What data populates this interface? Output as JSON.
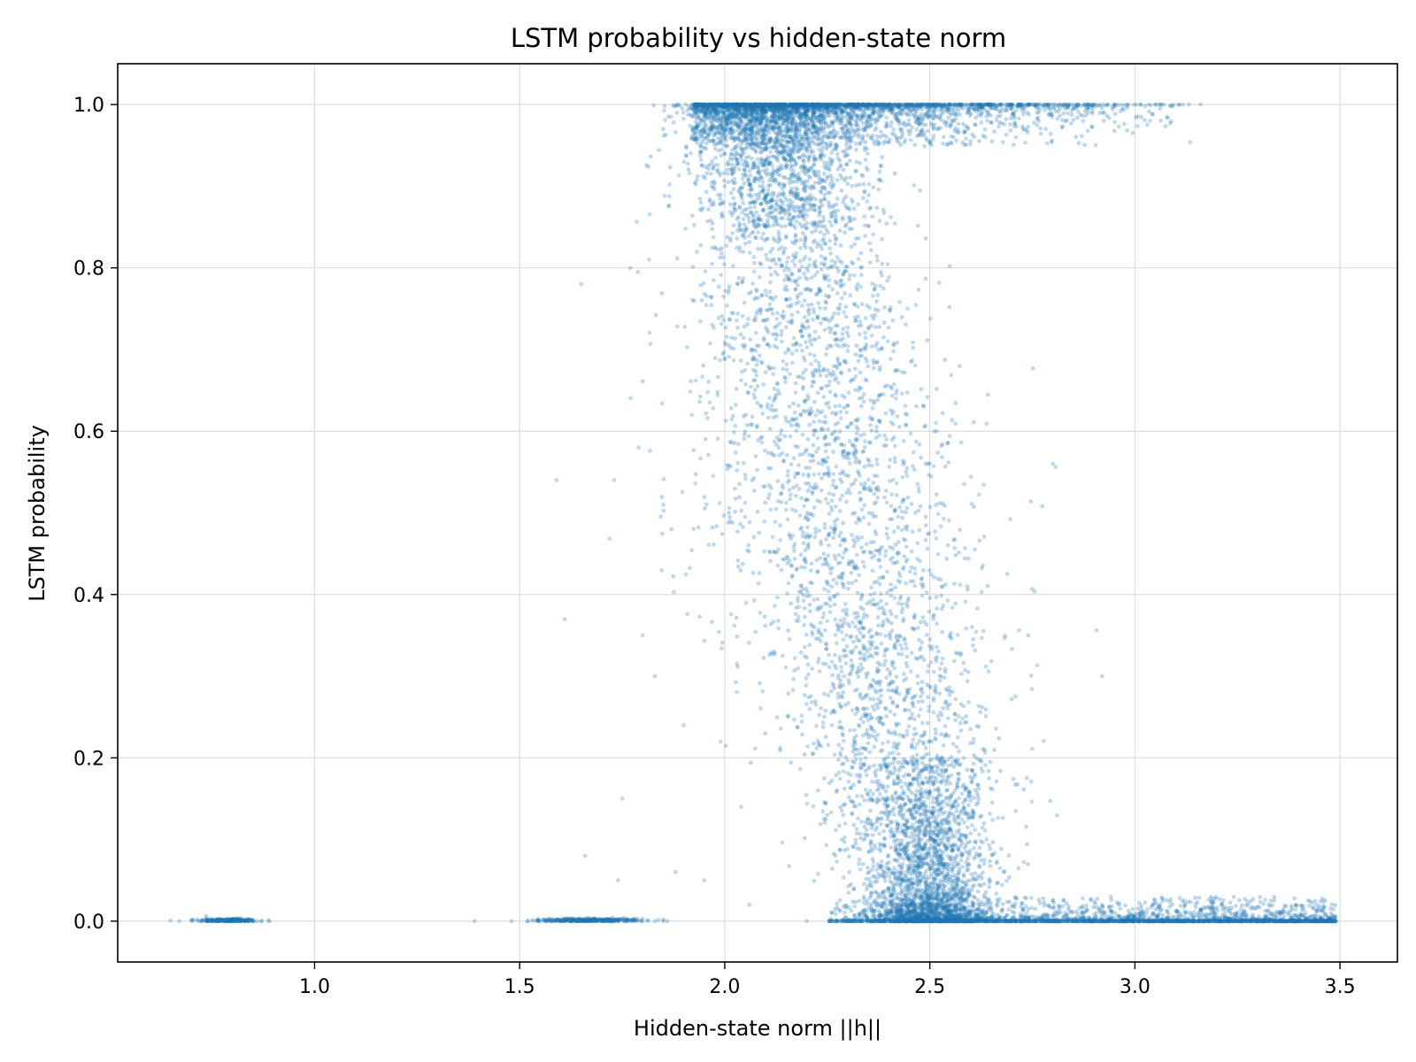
{
  "chart_data": {
    "type": "scatter",
    "title": "LSTM probability vs hidden-state norm",
    "xlabel": "Hidden-state norm ||h||",
    "ylabel": "LSTM probability",
    "xlim": [
      0.52,
      3.64
    ],
    "ylim": [
      -0.05,
      1.05
    ],
    "xticks": [
      1.0,
      1.5,
      2.0,
      2.5,
      3.0,
      3.5
    ],
    "xtick_labels": [
      "1.0",
      "1.5",
      "2.0",
      "2.5",
      "3.0",
      "3.5"
    ],
    "yticks": [
      0.0,
      0.2,
      0.4,
      0.6,
      0.8,
      1.0
    ],
    "ytick_labels": [
      "0.0",
      "0.2",
      "0.4",
      "0.6",
      "0.8",
      "1.0"
    ],
    "grid": true,
    "legend": "none",
    "marker_color": "#1f77b4",
    "marker_alpha": 0.28,
    "point_count_estimate": 20000,
    "series": [
      {
        "name": "cluster-low-norm-zero",
        "description_range": {
          "x": [
            0.67,
            0.89
          ],
          "y": [
            0.0,
            0.0
          ]
        },
        "x": [
          0.67,
          0.7,
          0.72,
          0.74,
          0.75,
          0.76,
          0.77,
          0.78,
          0.79,
          0.8,
          0.81,
          0.82,
          0.83,
          0.84,
          0.85,
          0.86,
          0.87,
          0.89
        ],
        "y": [
          0.0,
          0.0,
          0.0,
          0.0,
          0.0,
          0.0,
          0.0,
          0.0,
          0.0,
          0.0,
          0.0,
          0.0,
          0.0,
          0.0,
          0.0,
          0.0,
          0.0,
          0.0
        ]
      },
      {
        "name": "cluster-mid-norm-zero",
        "x": [
          1.39,
          1.48,
          1.52,
          1.55,
          1.58,
          1.6,
          1.62,
          1.64,
          1.66,
          1.68,
          1.7,
          1.72,
          1.74,
          1.76,
          1.78,
          1.8,
          1.83,
          1.86
        ],
        "y": [
          0.0,
          0.0,
          0.0,
          0.0,
          0.0,
          0.0,
          0.0,
          0.0,
          0.0,
          0.0,
          0.0,
          0.0,
          0.0,
          0.0,
          0.0,
          0.0,
          0.0,
          0.0
        ]
      },
      {
        "name": "sparse-transition-outliers",
        "x": [
          1.59,
          1.61,
          1.65,
          1.66,
          1.74,
          1.75,
          1.77,
          1.79,
          1.8,
          1.83,
          1.85,
          1.87,
          1.88,
          1.9,
          1.92,
          1.95,
          1.99,
          2.01,
          2.04,
          2.06
        ],
        "y": [
          0.54,
          0.37,
          0.78,
          0.08,
          0.05,
          0.15,
          0.8,
          0.58,
          0.35,
          0.3,
          0.51,
          0.48,
          0.06,
          0.24,
          0.62,
          0.05,
          0.22,
          0.5,
          0.14,
          0.02
        ]
      },
      {
        "name": "saturated-high-band",
        "x": [
          1.85,
          1.95,
          2.05,
          2.15,
          2.25,
          2.35,
          2.45,
          2.55,
          2.65,
          2.75,
          2.85,
          2.95,
          3.05,
          3.16
        ],
        "y": [
          0.97,
          0.99,
          1.0,
          1.0,
          1.0,
          1.0,
          1.0,
          1.0,
          1.0,
          1.0,
          1.0,
          1.0,
          1.0,
          1.0
        ]
      },
      {
        "name": "saturated-low-band",
        "x": [
          2.2,
          2.3,
          2.4,
          2.5,
          2.6,
          2.7,
          2.8,
          2.9,
          3.0,
          3.1,
          3.2,
          3.3,
          3.4,
          3.49
        ],
        "y": [
          0.0,
          0.0,
          0.01,
          0.02,
          0.01,
          0.0,
          0.0,
          0.0,
          0.0,
          0.0,
          0.0,
          0.0,
          0.0,
          0.0
        ]
      },
      {
        "name": "transition-core",
        "x": [
          1.9,
          2.0,
          2.1,
          2.2,
          2.28,
          2.33,
          2.37,
          2.42,
          2.47,
          2.52,
          2.57,
          2.62,
          2.68,
          2.74,
          2.8,
          2.92
        ],
        "y": [
          0.93,
          0.9,
          0.85,
          0.8,
          0.75,
          0.7,
          0.6,
          0.45,
          0.3,
          0.18,
          0.1,
          0.08,
          0.06,
          0.35,
          0.56,
          0.3
        ]
      }
    ]
  }
}
